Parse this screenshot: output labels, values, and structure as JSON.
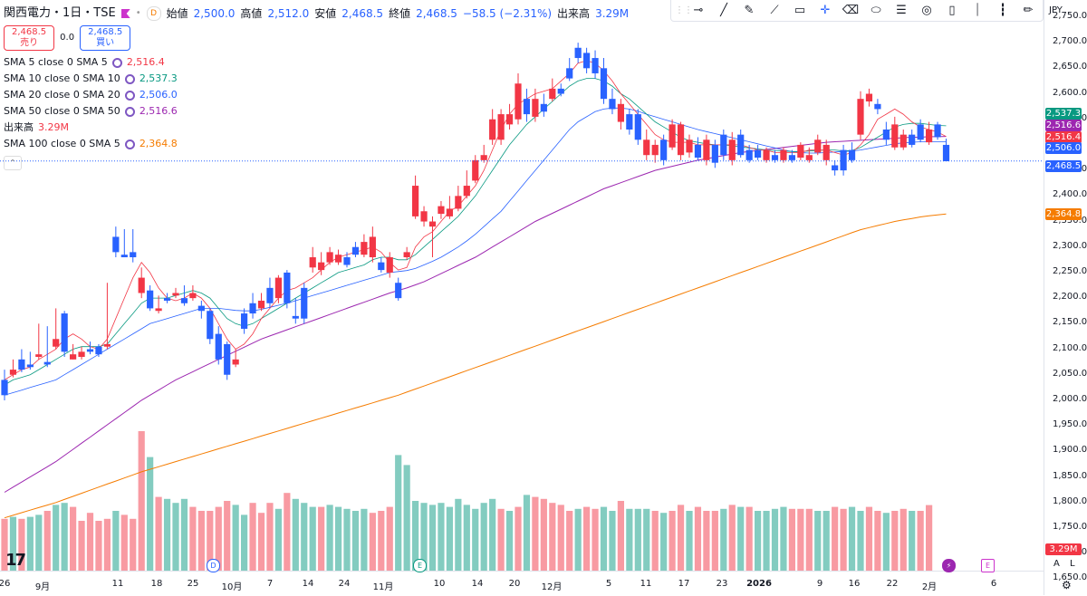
{
  "symbol": {
    "title": "関西電力・1日・TSE",
    "market_badge": "D",
    "open_label": "始値",
    "open": "2,500.0",
    "high_label": "高値",
    "high": "2,512.0",
    "low_label": "安値",
    "low": "2,468.5",
    "close_label": "終値",
    "close": "2,468.5",
    "change": "−58.5 (−2.31%)",
    "volume_label": "出来高",
    "volume": "3.29M"
  },
  "trade": {
    "sell_price": "2,468.5",
    "sell_label": "売り",
    "spread": "0.0",
    "buy_price": "2,468.5",
    "buy_label": "買い"
  },
  "indicators": [
    {
      "label": "SMA 5 close 0 SMA 5",
      "value": "2,516.4",
      "color": "#f23645"
    },
    {
      "label": "SMA 10 close 0 SMA 10",
      "value": "2,537.3",
      "color": "#089981"
    },
    {
      "label": "SMA 20 close 0 SMA 20",
      "value": "2,506.0",
      "color": "#2962ff"
    },
    {
      "label": "SMA 50 close 0 SMA 50",
      "value": "2,516.6",
      "color": "#9c27b0"
    },
    {
      "label": "出来高",
      "value": "3.29M",
      "color": "#f23645"
    },
    {
      "label": "SMA 100 close 0 SMA 5",
      "value": "2,364.8",
      "color": "#f57c00"
    }
  ],
  "toolbar_icons": [
    "horizontal-ray-icon",
    "trend-line-icon",
    "brush-icon",
    "path-icon",
    "callout-icon",
    "crosshair-icon",
    "eraser-icon",
    "ellipse-icon",
    "text-lines-icon",
    "circle-target-icon",
    "rectangle-icon",
    "vertical-line-icon",
    "candles-icon",
    "pencil-icon"
  ],
  "axis": {
    "currency": "JPY",
    "y_ticks": [
      "2,750.0",
      "2,700.0",
      "2,650.0",
      "2,600.0",
      "2,550.0",
      "2,450.0",
      "2,400.0",
      "2,350.0",
      "2,300.0",
      "2,250.0",
      "2,200.0",
      "2,150.0",
      "2,100.0",
      "2,050.0",
      "2,000.0",
      "1,950.0",
      "1,900.0",
      "1,850.0",
      "1,800.0",
      "1,750.0",
      "1,700.0",
      "1,650.0"
    ],
    "x_ticks": [
      "26",
      "9月",
      "11",
      "18",
      "25",
      "10月",
      "7",
      "14",
      "24",
      "11月",
      "10",
      "14",
      "20",
      "12月",
      "5",
      "11",
      "17",
      "23",
      "2026",
      "9",
      "16",
      "22",
      "2月",
      "6"
    ],
    "auto_label": "A",
    "log_label": "L"
  },
  "price_tags": [
    {
      "value": "2,537.3",
      "color": "#089981"
    },
    {
      "value": "2,516.6",
      "color": "#9c27b0"
    },
    {
      "value": "2,516.4",
      "color": "#f23645"
    },
    {
      "value": "2,506.0",
      "color": "#2962ff"
    },
    {
      "value": "2,468.5",
      "color": "#2962ff"
    },
    {
      "value": "2,364.8",
      "color": "#f57c00"
    },
    {
      "value": "3.29M",
      "color": "#f23645"
    }
  ],
  "events": [
    {
      "label": "D",
      "color": "#2962ff"
    },
    {
      "label": "E",
      "color": "#089981"
    },
    {
      "label": "⚡",
      "color": "#9c27b0"
    },
    {
      "label": "E",
      "color": "#cc33cc"
    }
  ],
  "chart_data": {
    "type": "candlestick",
    "title": "関西電力・1日・TSE",
    "ylim": [
      1640,
      2780
    ],
    "candles": [
      [
        2040,
        2060,
        2010,
        2000
      ],
      [
        2060,
        2080,
        2050,
        2045
      ],
      [
        2080,
        2100,
        2060,
        2055
      ],
      [
        2070,
        2095,
        2065,
        2060
      ],
      [
        2090,
        2150,
        2085,
        2080
      ],
      [
        2075,
        2145,
        2070,
        2065
      ],
      [
        2120,
        2180,
        2105,
        2100
      ],
      [
        2170,
        2175,
        2095,
        2085
      ],
      [
        2090,
        2110,
        2080,
        2080
      ],
      [
        2095,
        2105,
        2085,
        2080
      ],
      [
        2100,
        2115,
        2095,
        2090
      ],
      [
        2105,
        2110,
        2090,
        2085
      ],
      [
        2110,
        2230,
        2105,
        2100
      ],
      [
        2320,
        2340,
        2290,
        2280
      ],
      [
        2285,
        2335,
        2280,
        2280
      ],
      [
        2290,
        2335,
        2280,
        2270
      ],
      [
        2240,
        2260,
        2210,
        2200
      ],
      [
        2215,
        2225,
        2180,
        2175
      ],
      [
        2180,
        2205,
        2175,
        2170
      ],
      [
        2200,
        2210,
        2195,
        2190
      ],
      [
        2210,
        2220,
        2205,
        2200
      ],
      [
        2200,
        2225,
        2190,
        2185
      ],
      [
        2210,
        2225,
        2200,
        2195
      ],
      [
        2185,
        2195,
        2175,
        2160
      ],
      [
        2175,
        2180,
        2120,
        2110
      ],
      [
        2130,
        2145,
        2080,
        2070
      ],
      [
        2110,
        2115,
        2050,
        2040
      ],
      [
        2080,
        2100,
        2070,
        2065
      ],
      [
        2170,
        2180,
        2140,
        2130
      ],
      [
        2190,
        2210,
        2170,
        2160
      ],
      [
        2195,
        2210,
        2180,
        2175
      ],
      [
        2220,
        2240,
        2190,
        2180
      ],
      [
        2240,
        2245,
        2200,
        2190
      ],
      [
        2250,
        2255,
        2190,
        2180
      ],
      [
        2165,
        2200,
        2160,
        2150
      ],
      [
        2220,
        2230,
        2160,
        2150
      ],
      [
        2280,
        2300,
        2260,
        2250
      ],
      [
        2270,
        2290,
        2255,
        2245
      ],
      [
        2290,
        2300,
        2270,
        2265
      ],
      [
        2285,
        2295,
        2270,
        2265
      ],
      [
        2280,
        2290,
        2265,
        2260
      ],
      [
        2300,
        2310,
        2285,
        2280
      ],
      [
        2310,
        2325,
        2285,
        2280
      ],
      [
        2320,
        2340,
        2280,
        2270
      ],
      [
        2270,
        2280,
        2255,
        2250
      ],
      [
        2280,
        2290,
        2250,
        2240
      ],
      [
        2230,
        2240,
        2200,
        2195
      ],
      [
        2290,
        2300,
        2280,
        2275
      ],
      [
        2420,
        2440,
        2360,
        2355
      ],
      [
        2370,
        2380,
        2350,
        2340
      ],
      [
        2350,
        2360,
        2340,
        2280
      ],
      [
        2380,
        2390,
        2365,
        2355
      ],
      [
        2375,
        2400,
        2360,
        2355
      ],
      [
        2400,
        2420,
        2375,
        2370
      ],
      [
        2420,
        2450,
        2400,
        2395
      ],
      [
        2470,
        2480,
        2430,
        2425
      ],
      [
        2480,
        2500,
        2470,
        2465
      ],
      [
        2550,
        2570,
        2510,
        2500
      ],
      [
        2560,
        2570,
        2510,
        2500
      ],
      [
        2560,
        2580,
        2540,
        2530
      ],
      [
        2620,
        2640,
        2550,
        2540
      ],
      [
        2590,
        2610,
        2560,
        2545
      ],
      [
        2590,
        2610,
        2555,
        2545
      ],
      [
        2580,
        2600,
        2565,
        2555
      ],
      [
        2610,
        2630,
        2590,
        2585
      ],
      [
        2610,
        2620,
        2600,
        2595
      ],
      [
        2650,
        2670,
        2630,
        2625
      ],
      [
        2690,
        2700,
        2670,
        2660
      ],
      [
        2680,
        2690,
        2650,
        2640
      ],
      [
        2670,
        2685,
        2640,
        2630
      ],
      [
        2650,
        2670,
        2590,
        2580
      ],
      [
        2590,
        2610,
        2570,
        2560
      ],
      [
        2580,
        2590,
        2545,
        2530
      ],
      [
        2560,
        2570,
        2530,
        2520
      ],
      [
        2560,
        2570,
        2510,
        2500
      ],
      [
        2510,
        2530,
        2480,
        2470
      ],
      [
        2500,
        2510,
        2480,
        2465
      ],
      [
        2510,
        2520,
        2470,
        2460
      ],
      [
        2540,
        2550,
        2495,
        2490
      ],
      [
        2540,
        2545,
        2480,
        2470
      ],
      [
        2510,
        2520,
        2485,
        2475
      ],
      [
        2500,
        2515,
        2475,
        2470
      ],
      [
        2510,
        2520,
        2470,
        2460
      ],
      [
        2500,
        2510,
        2465,
        2455
      ],
      [
        2520,
        2530,
        2480,
        2470
      ],
      [
        2510,
        2525,
        2470,
        2460
      ],
      [
        2520,
        2530,
        2480,
        2475
      ],
      [
        2490,
        2500,
        2470,
        2465
      ],
      [
        2490,
        2500,
        2475,
        2470
      ],
      [
        2490,
        2495,
        2470,
        2465
      ],
      [
        2480,
        2490,
        2470,
        2465
      ],
      [
        2490,
        2495,
        2470,
        2465
      ],
      [
        2480,
        2490,
        2470,
        2465
      ],
      [
        2500,
        2505,
        2475,
        2470
      ],
      [
        2480,
        2495,
        2470,
        2465
      ],
      [
        2510,
        2520,
        2485,
        2480
      ],
      [
        2500,
        2510,
        2470,
        2460
      ],
      [
        2460,
        2470,
        2450,
        2440
      ],
      [
        2490,
        2500,
        2450,
        2440
      ],
      [
        2490,
        2505,
        2470,
        2465
      ],
      [
        2590,
        2605,
        2520,
        2510
      ],
      [
        2600,
        2610,
        2585,
        2575
      ],
      [
        2580,
        2590,
        2570,
        2560
      ],
      [
        2530,
        2545,
        2510,
        2500
      ],
      [
        2540,
        2555,
        2495,
        2490
      ],
      [
        2520,
        2530,
        2495,
        2490
      ],
      [
        2520,
        2530,
        2500,
        2495
      ],
      [
        2540,
        2550,
        2510,
        2505
      ],
      [
        2530,
        2545,
        2505,
        2500
      ],
      [
        2540,
        2545,
        2515,
        2510
      ],
      [
        2500,
        2512,
        2468,
        2468
      ]
    ],
    "candle_dirs": "DUDDUDUDUUDDUDDDUDUDUDUDDDDUDDUDUDDDUUUUDDUUDUDUUUUUUUUUUUUUUDUDUDDDDDDDUDDUUDUUUDUDDUDDDUDUDUUUUDDDUUDDUUDDUDD",
    "sma5": [
      2040,
      2050,
      2060,
      2065,
      2080,
      2090,
      2100,
      2120,
      2130,
      2120,
      2105,
      2100,
      2120,
      2160,
      2200,
      2240,
      2270,
      2250,
      2220,
      2200,
      2195,
      2200,
      2210,
      2200,
      2180,
      2150,
      2120,
      2100,
      2110,
      2130,
      2160,
      2180,
      2200,
      2215,
      2220,
      2230,
      2240,
      2255,
      2270,
      2280,
      2285,
      2290,
      2295,
      2300,
      2290,
      2270,
      2255,
      2260,
      2300,
      2320,
      2330,
      2350,
      2370,
      2380,
      2400,
      2420,
      2450,
      2490,
      2530,
      2560,
      2580,
      2590,
      2600,
      2605,
      2610,
      2625,
      2640,
      2660,
      2665,
      2660,
      2645,
      2625,
      2600,
      2580,
      2560,
      2540,
      2520,
      2510,
      2505,
      2505,
      2505,
      2500,
      2500,
      2500,
      2500,
      2500,
      2500,
      2495,
      2490,
      2490,
      2485,
      2485,
      2485,
      2485,
      2490,
      2490,
      2490,
      2485,
      2480,
      2485,
      2500,
      2520,
      2550,
      2560,
      2570,
      2560,
      2545,
      2535,
      2530,
      2525,
      2516.4
    ],
    "sma10": [
      2030,
      2040,
      2045,
      2050,
      2060,
      2070,
      2080,
      2090,
      2100,
      2105,
      2105,
      2105,
      2110,
      2130,
      2150,
      2170,
      2190,
      2200,
      2200,
      2200,
      2205,
      2210,
      2215,
      2210,
      2200,
      2180,
      2160,
      2150,
      2145,
      2150,
      2160,
      2170,
      2180,
      2190,
      2200,
      2210,
      2220,
      2230,
      2240,
      2250,
      2255,
      2260,
      2265,
      2275,
      2280,
      2280,
      2275,
      2275,
      2285,
      2300,
      2315,
      2330,
      2345,
      2360,
      2380,
      2400,
      2425,
      2450,
      2475,
      2500,
      2520,
      2540,
      2555,
      2570,
      2585,
      2600,
      2615,
      2625,
      2630,
      2630,
      2625,
      2615,
      2600,
      2590,
      2575,
      2560,
      2545,
      2535,
      2525,
      2515,
      2508,
      2505,
      2502,
      2500,
      2500,
      2498,
      2496,
      2494,
      2492,
      2490,
      2489,
      2488,
      2487,
      2487,
      2488,
      2489,
      2490,
      2490,
      2488,
      2489,
      2495,
      2505,
      2515,
      2525,
      2535,
      2540,
      2542,
      2542,
      2540,
      2538,
      2537.3
    ],
    "sma20": [
      2010,
      2015,
      2020,
      2025,
      2030,
      2035,
      2040,
      2050,
      2060,
      2070,
      2080,
      2090,
      2100,
      2110,
      2120,
      2130,
      2140,
      2150,
      2155,
      2160,
      2165,
      2170,
      2175,
      2180,
      2180,
      2180,
      2178,
      2176,
      2175,
      2175,
      2178,
      2182,
      2186,
      2190,
      2195,
      2200,
      2205,
      2210,
      2215,
      2220,
      2225,
      2230,
      2235,
      2240,
      2245,
      2250,
      2252,
      2254,
      2258,
      2265,
      2272,
      2280,
      2290,
      2300,
      2312,
      2325,
      2340,
      2355,
      2370,
      2390,
      2410,
      2430,
      2450,
      2470,
      2490,
      2510,
      2530,
      2545,
      2555,
      2565,
      2570,
      2572,
      2572,
      2570,
      2566,
      2560,
      2555,
      2550,
      2545,
      2540,
      2535,
      2530,
      2526,
      2522,
      2518,
      2514,
      2510,
      2506,
      2502,
      2498,
      2494,
      2490,
      2487,
      2485,
      2484,
      2484,
      2485,
      2486,
      2487,
      2488,
      2490,
      2493,
      2496,
      2499,
      2502,
      2504,
      2505,
      2506,
      2506,
      2506,
      2506.0
    ],
    "sma50": [
      1820,
      1830,
      1840,
      1850,
      1860,
      1870,
      1880,
      1892,
      1904,
      1916,
      1928,
      1940,
      1952,
      1964,
      1976,
      1988,
      2000,
      2010,
      2020,
      2030,
      2040,
      2048,
      2056,
      2064,
      2072,
      2080,
      2088,
      2096,
      2104,
      2112,
      2120,
      2126,
      2132,
      2138,
      2144,
      2150,
      2156,
      2162,
      2168,
      2174,
      2180,
      2186,
      2192,
      2198,
      2204,
      2210,
      2215,
      2220,
      2226,
      2232,
      2240,
      2248,
      2256,
      2264,
      2272,
      2280,
      2290,
      2300,
      2310,
      2320,
      2330,
      2340,
      2350,
      2358,
      2366,
      2374,
      2382,
      2390,
      2398,
      2406,
      2414,
      2420,
      2426,
      2432,
      2438,
      2444,
      2450,
      2454,
      2458,
      2462,
      2466,
      2470,
      2473,
      2476,
      2479,
      2482,
      2485,
      2487,
      2489,
      2491,
      2493,
      2495,
      2497,
      2499,
      2501,
      2503,
      2505,
      2506,
      2507,
      2508,
      2509,
      2510,
      2511,
      2512,
      2513,
      2514,
      2515,
      2515,
      2516,
      2516,
      2516.6
    ],
    "sma100": [
      1770,
      1775,
      1780,
      1785,
      1790,
      1795,
      1800,
      1806,
      1812,
      1818,
      1824,
      1830,
      1836,
      1842,
      1848,
      1854,
      1860,
      1865,
      1870,
      1875,
      1880,
      1885,
      1890,
      1895,
      1900,
      1905,
      1910,
      1915,
      1920,
      1925,
      1930,
      1935,
      1940,
      1945,
      1950,
      1955,
      1960,
      1965,
      1970,
      1975,
      1980,
      1985,
      1990,
      1995,
      2000,
      2005,
      2010,
      2016,
      2022,
      2028,
      2034,
      2040,
      2046,
      2052,
      2058,
      2064,
      2070,
      2076,
      2082,
      2088,
      2094,
      2100,
      2106,
      2112,
      2118,
      2124,
      2130,
      2136,
      2142,
      2148,
      2154,
      2160,
      2166,
      2172,
      2178,
      2184,
      2190,
      2196,
      2202,
      2208,
      2214,
      2220,
      2226,
      2232,
      2238,
      2244,
      2250,
      2256,
      2262,
      2268,
      2274,
      2280,
      2286,
      2292,
      2298,
      2304,
      2310,
      2316,
      2322,
      2328,
      2334,
      2338,
      2342,
      2346,
      2350,
      2353,
      2356,
      2359,
      2361,
      2363,
      2364.8
    ],
    "volume_m": [
      2.6,
      2.7,
      2.6,
      2.7,
      2.8,
      3.0,
      3.3,
      3.4,
      3.2,
      2.5,
      2.9,
      2.5,
      2.6,
      3.0,
      2.8,
      2.6,
      7.0,
      5.7,
      3.7,
      3.6,
      3.4,
      3.6,
      3.2,
      3.0,
      3.0,
      3.2,
      3.5,
      3.3,
      2.8,
      3.4,
      2.9,
      3.4,
      3.1,
      3.9,
      3.6,
      3.4,
      3.2,
      3.2,
      3.3,
      3.2,
      3.1,
      3.0,
      3.1,
      2.9,
      3.0,
      3.2,
      5.8,
      5.3,
      3.5,
      3.4,
      3.3,
      3.4,
      3.2,
      3.6,
      3.3,
      3.1,
      3.4,
      3.6,
      3.1,
      3.0,
      3.2,
      3.8,
      3.7,
      3.6,
      3.4,
      3.3,
      3.0,
      3.1,
      3.2,
      3.1,
      3.2,
      3.0,
      3.5,
      3.1,
      3.1,
      3.1,
      3.0,
      2.9,
      3.0,
      3.3,
      3.0,
      3.2,
      3.0,
      3.0,
      3.1,
      3.3,
      3.2,
      3.2,
      3.0,
      3.0,
      3.1,
      3.2,
      3.1,
      3.1,
      3.1,
      3.0,
      3.0,
      3.2,
      3.1,
      3.2,
      3.0,
      3.2,
      3.0,
      2.9,
      3.0,
      3.1,
      3.0,
      3.0,
      3.29
    ],
    "volume_dirs": "DUDUUDUUDDDDDUDDDUDUUUDDDDDUUDDDUDUUUDUUUUUDDDUUUUUUUUUUUUDUDUDDDDDUDDUUDUUUDUDDUDDDUDUDUUUUDDDUUDDUUDDUDDU"
  }
}
